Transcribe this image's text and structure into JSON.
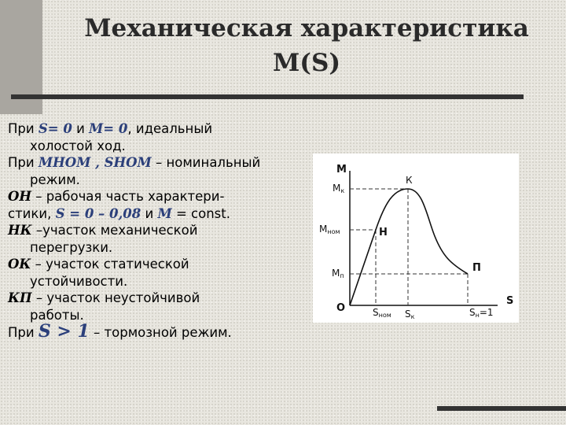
{
  "title": {
    "line1": "Механическая характеристика",
    "line2": "М(S)"
  },
  "text": {
    "l1": {
      "a": "При ",
      "b": "S= 0",
      "c": " и ",
      "d": "M= 0",
      "e": ", идеальный"
    },
    "l2": "холостой ход.",
    "l3": {
      "a": "При ",
      "b": "MНОМ , SНОМ",
      "c": " – номинальный"
    },
    "l4": "режим.",
    "l5": {
      "a": "ОН",
      "b": " – рабочая часть характери-"
    },
    "l6": {
      "a": "стики, ",
      "b": "S = 0 – 0,08",
      "c": " и ",
      "d": "M",
      "e": " = const."
    },
    "l7": {
      "a": "НК",
      "b": " –участок механической"
    },
    "l8": "перегрузки.",
    "l9": {
      "a": "ОК",
      "b": " – участок статической"
    },
    "l10": "устойчивости.",
    "l11": {
      "a": "КП",
      "b": " – участок неустойчивой"
    },
    "l12": "работы.",
    "l13": {
      "a": "При ",
      "b": "S > 1",
      "c": " – тормозной режим."
    }
  },
  "chart_data": {
    "type": "line",
    "axis_labels": {
      "y": "М",
      "x": "S",
      "origin": "О"
    },
    "y_ticks": [
      {
        "label": "М",
        "sub": "к"
      },
      {
        "label": "М",
        "sub": "ном"
      },
      {
        "label": "М",
        "sub": "п"
      }
    ],
    "x_ticks": [
      {
        "label": "S",
        "sub": "ном"
      },
      {
        "label": "S",
        "sub": "к"
      },
      {
        "label": "S",
        "sub": "н",
        "suffix": "=1"
      }
    ],
    "point_labels": {
      "K": "К",
      "H": "Н",
      "P": "П"
    },
    "points": [
      {
        "name": "О",
        "s": 0,
        "m": 0
      },
      {
        "name": "Н",
        "s": 0.33,
        "m": 0.68
      },
      {
        "name": "К",
        "s": 0.6,
        "m": 1
      },
      {
        "name": "П",
        "s": 1,
        "m": 0.3
      }
    ],
    "grid": false
  }
}
